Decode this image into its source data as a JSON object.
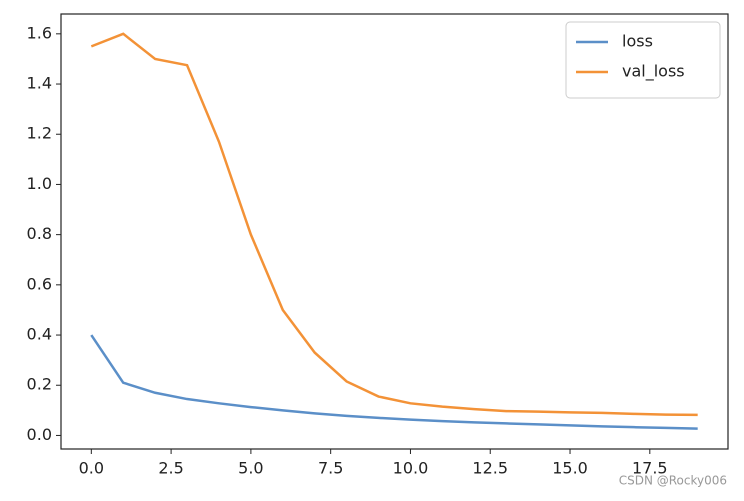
{
  "chart_data": {
    "type": "line",
    "x": [
      0,
      1,
      2,
      3,
      4,
      5,
      6,
      7,
      8,
      9,
      10,
      11,
      12,
      13,
      14,
      15,
      16,
      17,
      18,
      19
    ],
    "series": [
      {
        "name": "loss",
        "color": "#5b8fc8",
        "values": [
          0.4,
          0.21,
          0.17,
          0.145,
          0.128,
          0.113,
          0.1,
          0.088,
          0.078,
          0.07,
          0.063,
          0.057,
          0.052,
          0.048,
          0.044,
          0.04,
          0.036,
          0.033,
          0.03,
          0.027
        ]
      },
      {
        "name": "val_loss",
        "color": "#f39237",
        "values": [
          1.55,
          1.6,
          1.5,
          1.475,
          1.17,
          0.8,
          0.5,
          0.33,
          0.215,
          0.155,
          0.128,
          0.115,
          0.105,
          0.097,
          0.095,
          0.092,
          0.09,
          0.086,
          0.083,
          0.082
        ]
      }
    ],
    "xlim": [
      -0.95,
      19.95
    ],
    "xticks": [
      {
        "value": 0,
        "label": "0.0"
      },
      {
        "value": 2.5,
        "label": "2.5"
      },
      {
        "value": 5,
        "label": "5.0"
      },
      {
        "value": 7.5,
        "label": "7.5"
      },
      {
        "value": 10,
        "label": "10.0"
      },
      {
        "value": 12.5,
        "label": "12.5"
      },
      {
        "value": 15,
        "label": "15.0"
      },
      {
        "value": 17.5,
        "label": "17.5"
      }
    ],
    "ylim": [
      -0.054,
      1.679
    ],
    "yticks": [
      {
        "value": 0,
        "label": "0.0"
      },
      {
        "value": 0.2,
        "label": "0.2"
      },
      {
        "value": 0.4,
        "label": "0.4"
      },
      {
        "value": 0.6,
        "label": "0.6"
      },
      {
        "value": 0.8,
        "label": "0.8"
      },
      {
        "value": 1,
        "label": "1.0"
      },
      {
        "value": 1.2,
        "label": "1.2"
      },
      {
        "value": 1.4,
        "label": "1.4"
      },
      {
        "value": 1.6,
        "label": "1.6"
      }
    ],
    "legend": "upper right",
    "watermark": "CSDN @Rocky006"
  }
}
